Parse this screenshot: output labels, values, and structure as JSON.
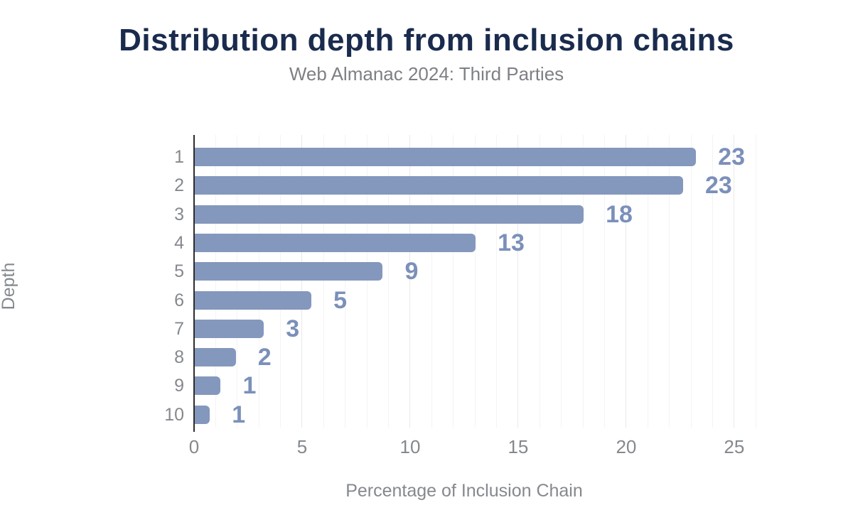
{
  "header": {
    "title": "Distribution depth from inclusion chains",
    "subtitle": "Web Almanac 2024: Third Parties"
  },
  "chart_data": {
    "type": "bar",
    "orientation": "horizontal",
    "title": "Distribution depth from inclusion chains",
    "subtitle": "Web Almanac 2024: Third Parties",
    "categories": [
      "1",
      "2",
      "3",
      "4",
      "5",
      "6",
      "7",
      "8",
      "9",
      "10"
    ],
    "values": [
      23.2,
      22.6,
      18.0,
      13.0,
      8.7,
      5.4,
      3.2,
      1.9,
      1.2,
      0.7
    ],
    "value_labels": [
      "23",
      "23",
      "18",
      "13",
      "9",
      "5",
      "3",
      "2",
      "1",
      "1"
    ],
    "xlabel": "Percentage of Inclusion Chain",
    "ylabel": "Depth",
    "xlim": [
      0,
      26.55
    ],
    "x_ticks": [
      0,
      5,
      10,
      15,
      20,
      25
    ],
    "grid": "vertical, minor every 1 unit, major every 5 units",
    "legend": "none",
    "colors": {
      "bar": "#8497bd",
      "value_label": "#7b90ba",
      "title": "#1a2b4d",
      "subtitle": "#7d8084",
      "axis_text": "#85898e",
      "axis_line": "#2d2d2d",
      "grid_minor": "#f4f4f4",
      "grid_major": "#e9e9e9",
      "background": "#ffffff"
    }
  }
}
